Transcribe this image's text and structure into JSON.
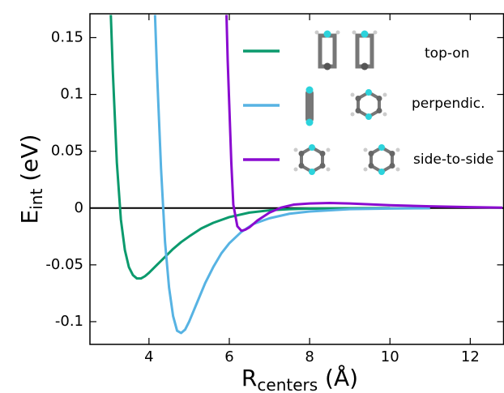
{
  "chart_data": {
    "type": "line",
    "xlabel": {
      "main": "R",
      "sub": "centers",
      "rest": " (Å)"
    },
    "ylabel": {
      "main": "E",
      "sub": "int",
      "rest": " (eV)"
    },
    "xlim": [
      2.53,
      12.83
    ],
    "ylim": [
      -0.12,
      0.171
    ],
    "xticks": [
      4,
      6,
      8,
      10,
      12
    ],
    "yticks": [
      -0.1,
      -0.05,
      0,
      0.05,
      0.1,
      0.15
    ],
    "series": [
      {
        "name": "top-on",
        "color": "#0b9a6d",
        "x": [
          3.05,
          3.1,
          3.2,
          3.3,
          3.4,
          3.5,
          3.6,
          3.7,
          3.8,
          3.9,
          4.0,
          4.2,
          4.4,
          4.6,
          4.8,
          5.0,
          5.3,
          5.6,
          6.0,
          6.5,
          7.0,
          7.5,
          8,
          9,
          10
        ],
        "values": [
          0.17,
          0.12,
          0.04,
          -0.01,
          -0.037,
          -0.052,
          -0.059,
          -0.062,
          -0.062,
          -0.06,
          -0.057,
          -0.05,
          -0.043,
          -0.036,
          -0.03,
          -0.025,
          -0.018,
          -0.013,
          -0.008,
          -0.004,
          -0.002,
          -0.001,
          -0.0005,
          -0.0002,
          -0.0001
        ]
      },
      {
        "name": "perpendic.",
        "color": "#57b3e3",
        "x": [
          4.15,
          4.2,
          4.3,
          4.4,
          4.5,
          4.6,
          4.7,
          4.8,
          4.9,
          5.0,
          5.2,
          5.4,
          5.6,
          5.8,
          6.0,
          6.3,
          6.6,
          7.0,
          7.5,
          8,
          9,
          10,
          11
        ],
        "values": [
          0.17,
          0.12,
          0.035,
          -0.03,
          -0.07,
          -0.095,
          -0.108,
          -0.11,
          -0.107,
          -0.1,
          -0.083,
          -0.066,
          -0.052,
          -0.04,
          -0.031,
          -0.021,
          -0.014,
          -0.009,
          -0.005,
          -0.003,
          -0.001,
          -0.0004,
          -0.0002
        ]
      },
      {
        "name": "side-to-side",
        "color": "#8a0bd0",
        "x": [
          5.93,
          5.96,
          6.0,
          6.05,
          6.1,
          6.2,
          6.3,
          6.4,
          6.5,
          6.7,
          7.0,
          7.3,
          7.6,
          8.0,
          8.5,
          9,
          10,
          11,
          12,
          12.8
        ],
        "values": [
          0.17,
          0.13,
          0.09,
          0.04,
          0.003,
          -0.016,
          -0.02,
          -0.019,
          -0.017,
          -0.011,
          -0.004,
          0.0005,
          0.003,
          0.004,
          0.0045,
          0.004,
          0.0025,
          0.0015,
          0.0008,
          0.0004
        ]
      }
    ]
  }
}
